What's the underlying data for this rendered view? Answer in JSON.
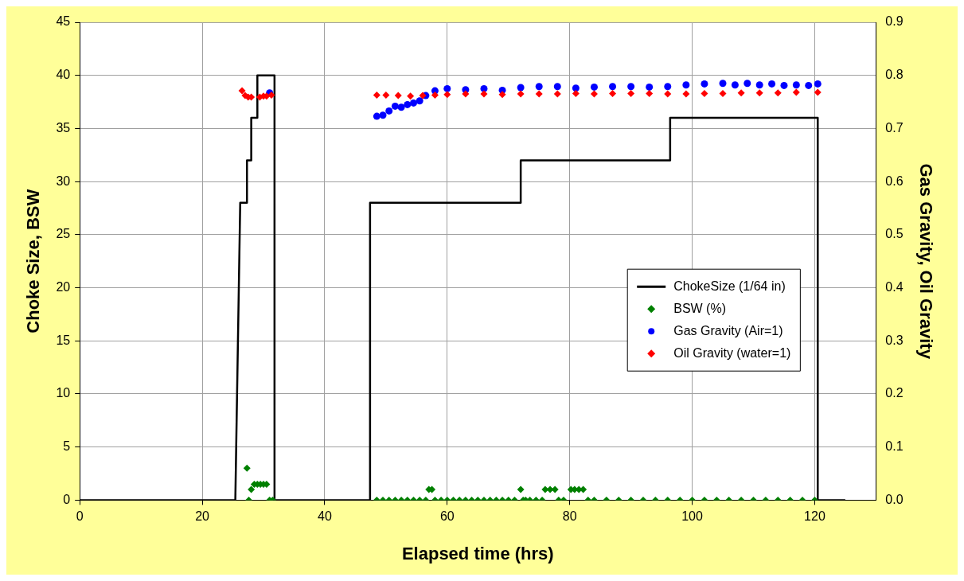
{
  "chart_data": {
    "type": "line",
    "xlabel": "Elapsed time (hrs)",
    "ylabel": "Choke Size, BSW",
    "y2label": "Gas Gravity, Oil Gravity",
    "xlim": [
      0,
      130
    ],
    "xticks": [
      0,
      20,
      40,
      60,
      80,
      100,
      120
    ],
    "ylim": [
      0,
      45
    ],
    "yticks": [
      0,
      5,
      10,
      15,
      20,
      25,
      30,
      35,
      40,
      45
    ],
    "y2lim": [
      0,
      0.9
    ],
    "y2ticks": [
      {
        "value": 0,
        "label": "0.0"
      },
      0.1,
      0.2,
      0.3,
      0.4,
      0.5,
      0.6,
      0.7,
      0.8,
      0.9
    ],
    "grid": true,
    "legend": "right",
    "series": [
      {
        "name": "ChokeSize (1/64 in)",
        "type": "line",
        "marker": "none",
        "color": "#000000",
        "x": [
          0,
          25.4,
          26.2,
          27.3,
          27.3,
          28.0,
          28.0,
          29.0,
          29.0,
          31.8,
          31.8,
          47.4,
          47.4,
          72.0,
          72.0,
          96.4,
          96.4,
          120.5,
          120.5,
          125
        ],
        "values": [
          0,
          0,
          28,
          28,
          32,
          32,
          36,
          36,
          40,
          40,
          0,
          0,
          28,
          28,
          32,
          32,
          36,
          36,
          0,
          0
        ]
      },
      {
        "name": "BSW (%)",
        "type": "scatter",
        "marker": "diamond",
        "color": "#008000",
        "x": [
          27.3,
          27.6,
          28.0,
          28.5,
          29.0,
          29.5,
          30.0,
          30.5,
          31.0,
          31.5,
          48.5,
          49.5,
          50.5,
          51.5,
          52.5,
          53.5,
          54.5,
          55.5,
          56.5,
          57.0,
          57.5,
          58.0,
          59.0,
          60.0,
          61.0,
          62.0,
          63.0,
          64.0,
          65.0,
          66.0,
          67.0,
          68.0,
          69.0,
          70.0,
          71.0,
          72.0,
          72.4,
          72.8,
          73.5,
          74.5,
          75.5,
          76.0,
          76.8,
          77.6,
          78.2,
          79.0,
          80.2,
          80.8,
          81.5,
          82.2,
          83.0,
          84.0,
          86.0,
          88.0,
          90.0,
          92.0,
          94.0,
          96.0,
          98.0,
          100.0,
          102.0,
          104.0,
          106.0,
          108.0,
          110.0,
          112.0,
          114.0,
          116.0,
          118.0,
          120.0
        ],
        "values": [
          3,
          0,
          1,
          1.5,
          1.5,
          1.5,
          1.5,
          1.5,
          0,
          0,
          0,
          0,
          0,
          0,
          0,
          0,
          0,
          0,
          0,
          1,
          1,
          0,
          0,
          0,
          0,
          0,
          0,
          0,
          0,
          0,
          0,
          0,
          0,
          0,
          0,
          1,
          0,
          0,
          0,
          0,
          0,
          1,
          1,
          1,
          0,
          0,
          1,
          1,
          1,
          1,
          0,
          0,
          0,
          0,
          0,
          0,
          0,
          0,
          0,
          0,
          0,
          0,
          0,
          0,
          0,
          0,
          0,
          0,
          0,
          0
        ]
      },
      {
        "name": "Gas Gravity (Air=1)",
        "type": "scatter",
        "marker": "circle",
        "axis": "y2",
        "color": "#0000ff",
        "x": [
          31.0,
          48.5,
          49.5,
          50.5,
          51.5,
          52.5,
          53.5,
          54.5,
          55.5,
          56.5,
          58.0,
          60.0,
          63.0,
          66.0,
          69.0,
          72.0,
          75.0,
          78.0,
          81.0,
          84.0,
          87.0,
          90.0,
          93.0,
          96.0,
          99.0,
          102.0,
          105.0,
          107.0,
          109.0,
          111.0,
          113.0,
          115.0,
          117.0,
          119.0,
          120.5
        ],
        "values": [
          0.767,
          0.723,
          0.725,
          0.733,
          0.742,
          0.74,
          0.745,
          0.748,
          0.752,
          0.762,
          0.771,
          0.775,
          0.773,
          0.775,
          0.772,
          0.777,
          0.779,
          0.779,
          0.776,
          0.778,
          0.779,
          0.779,
          0.778,
          0.779,
          0.782,
          0.784,
          0.785,
          0.782,
          0.785,
          0.782,
          0.784,
          0.781,
          0.782,
          0.781,
          0.784
        ]
      },
      {
        "name": "Oil Gravity (water=1)",
        "type": "scatter",
        "marker": "diamond",
        "axis": "y2",
        "color": "#ff0000",
        "x": [
          26.5,
          27.0,
          27.5,
          28.0,
          29.4,
          30.0,
          30.5,
          31.3,
          48.5,
          50.0,
          52.0,
          54.0,
          56.0,
          58.0,
          60.0,
          63.0,
          66.0,
          69.0,
          72.0,
          75.0,
          78.0,
          81.0,
          84.0,
          87.0,
          90.0,
          93.0,
          96.0,
          99.0,
          102.0,
          105.0,
          108.0,
          111.0,
          114.0,
          117.0,
          120.5
        ],
        "values": [
          0.771,
          0.762,
          0.759,
          0.759,
          0.759,
          0.761,
          0.761,
          0.763,
          0.763,
          0.763,
          0.762,
          0.761,
          0.762,
          0.763,
          0.764,
          0.765,
          0.765,
          0.764,
          0.765,
          0.765,
          0.765,
          0.766,
          0.765,
          0.766,
          0.766,
          0.766,
          0.765,
          0.765,
          0.766,
          0.766,
          0.767,
          0.767,
          0.767,
          0.768,
          0.768
        ]
      }
    ]
  }
}
